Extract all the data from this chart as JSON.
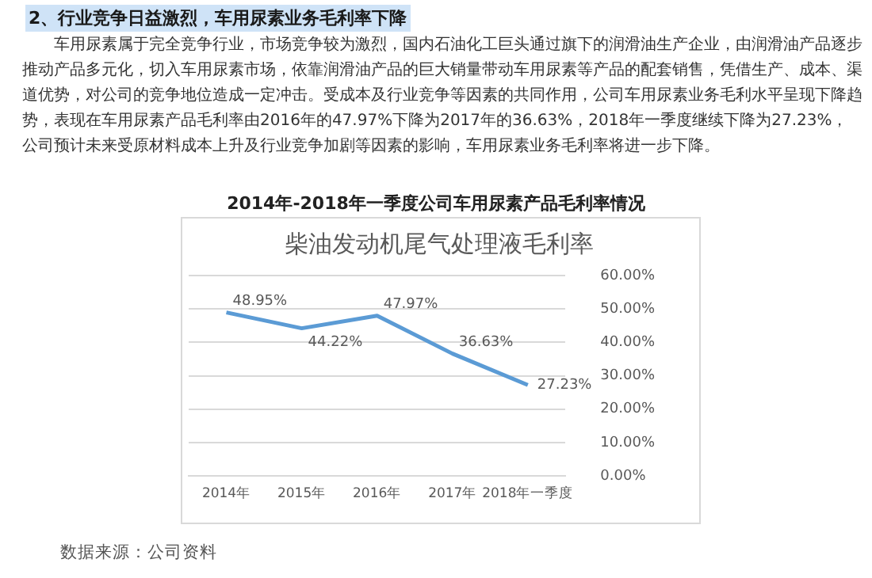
{
  "chart_data": {
    "type": "line",
    "title": "2014年-2018年一季度公司车用尿素产品毛利率情况",
    "subtitle": "柴油发动机尾气处理液毛利率",
    "annotations": [
      "2、行业竞争日益激烈，车用尿素业务毛利率下降",
      "车用尿素属于完全竞争行业，市场竞争较为激烈，国内石油化工巨头通过旗下的润滑油生产企业，由润滑油产品逐步推动产品多元化，切入车用尿素市场，依靠润滑油产品的巨大销量带动车用尿素等产品的配套销售，凭借生产、成本、渠道优势，对公司的竞争地位造成一定冲击。受成本及行业竞争等因素的共同作用，公司车用尿素业务毛利水平呈现下降趋势，表现在车用尿素产品毛利率由2016年的47.97%下降为2017年的36.63%，2018年一季度继续下降为27.23%，公司预计未来受原材料成本上升及行业竞争加剧等因素的影响，车用尿素业务毛利率将进一步下降。",
      "数据来源：公司资料"
    ],
    "categories": [
      "2014年",
      "2015年",
      "2016年",
      "2017年",
      "2018年一季度"
    ],
    "series": [
      {
        "color": "#5b9bd5",
        "values": [
          48.95,
          44.22,
          47.97,
          36.63,
          27.23
        ],
        "value_labels": [
          "48.95%",
          "44.22%",
          "47.97%",
          "36.63%",
          "27.23%"
        ]
      }
    ],
    "ylim": [
      0,
      60
    ],
    "yticks": [
      {
        "value": 0,
        "label": "0.00%"
      },
      {
        "value": 10,
        "label": "10.00%"
      },
      {
        "value": 20,
        "label": "20.00%"
      },
      {
        "value": 30,
        "label": "30.00%"
      },
      {
        "value": 40,
        "label": "40.00%"
      },
      {
        "value": 50,
        "label": "50.00%"
      },
      {
        "value": 60,
        "label": "60.00%"
      }
    ],
    "grid": "y",
    "legend": false,
    "marker": "none",
    "line_style": "solid"
  }
}
